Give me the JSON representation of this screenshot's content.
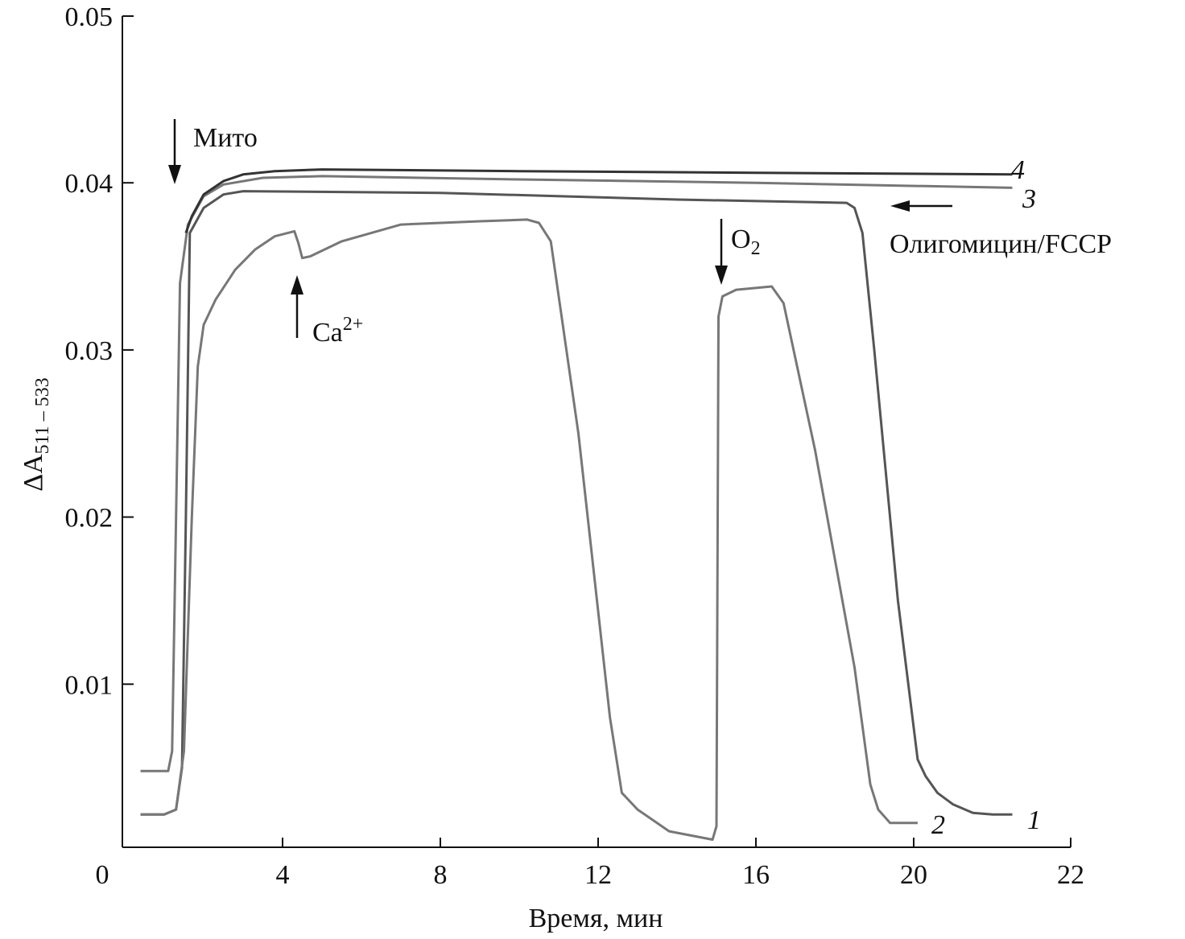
{
  "chart_data": {
    "type": "line",
    "title": "",
    "xlabel": "Время, мин",
    "ylabel": "ΔA",
    "ylabel_subscript": "511 – 533",
    "xlim": [
      0,
      22
    ],
    "ylim": [
      0,
      0.05
    ],
    "xticks": [
      "0",
      "4",
      "8",
      "12",
      "16",
      "20",
      "22"
    ],
    "yticks": [
      "0.01",
      "0.02",
      "0.03",
      "0.04",
      "0.05"
    ],
    "grid": false,
    "series": [
      {
        "name": "1",
        "color": "#555555",
        "x": [
          0.4,
          1.0,
          1.3,
          1.45,
          1.55,
          1.65,
          2.0,
          2.5,
          3.0,
          8.0,
          14.0,
          18.3,
          18.5,
          18.7,
          19.0,
          19.6,
          20.1,
          20.3,
          20.6,
          21.0,
          21.5,
          22.0,
          22.5
        ],
        "y": [
          0.0022,
          0.0022,
          0.0025,
          0.005,
          0.02,
          0.037,
          0.0385,
          0.0393,
          0.0395,
          0.0394,
          0.039,
          0.0388,
          0.0385,
          0.037,
          0.03,
          0.015,
          0.0055,
          0.0045,
          0.0035,
          0.0028,
          0.0023,
          0.0022,
          0.0022
        ]
      },
      {
        "name": "2",
        "color": "#777777",
        "x": [
          0.4,
          1.0,
          1.3,
          1.5,
          1.7,
          1.85,
          2.0,
          2.3,
          2.8,
          3.3,
          3.8,
          4.3,
          4.4,
          4.5,
          4.7,
          5.5,
          7.0,
          9.0,
          10.2,
          10.5,
          10.8,
          11.5,
          12.3,
          12.6,
          13.0,
          13.8,
          14.9,
          15.0,
          15.05,
          15.15,
          15.5,
          16.4,
          16.7,
          17.5,
          18.5,
          18.9,
          19.1,
          19.4,
          20.1
        ],
        "y": [
          0.0022,
          0.0022,
          0.0025,
          0.006,
          0.02,
          0.029,
          0.0315,
          0.033,
          0.0348,
          0.036,
          0.0368,
          0.0371,
          0.0364,
          0.0355,
          0.0356,
          0.0365,
          0.0375,
          0.0377,
          0.0378,
          0.0376,
          0.0365,
          0.025,
          0.008,
          0.0035,
          0.0025,
          0.0012,
          0.0007,
          0.0015,
          0.032,
          0.0332,
          0.0336,
          0.0338,
          0.0328,
          0.024,
          0.011,
          0.004,
          0.0025,
          0.0017,
          0.0017
        ]
      },
      {
        "name": "3",
        "color": "#777777",
        "x": [
          0.4,
          1.1,
          1.2,
          1.3,
          1.4,
          1.6,
          2.0,
          2.5,
          3.5,
          5.0,
          10.0,
          16.0,
          22.5
        ],
        "y": [
          0.0048,
          0.0048,
          0.006,
          0.02,
          0.034,
          0.0375,
          0.0392,
          0.0399,
          0.0403,
          0.0404,
          0.0402,
          0.04,
          0.0397
        ]
      },
      {
        "name": "4",
        "color": "#333333",
        "x": [
          1.55,
          1.7,
          2.0,
          2.5,
          3.0,
          3.8,
          5.0,
          10.0,
          16.0,
          22.5
        ],
        "y": [
          0.037,
          0.038,
          0.0393,
          0.0401,
          0.0405,
          0.0407,
          0.0408,
          0.0407,
          0.0406,
          0.0405
        ]
      }
    ],
    "annotations": [
      {
        "id": "mito",
        "text": "Мито",
        "arrow": "down",
        "x": 1.3
      },
      {
        "id": "ca",
        "text": "Ca",
        "sup": "2+",
        "arrow": "up",
        "x": 4.4
      },
      {
        "id": "o2",
        "text": "O",
        "sub": "2",
        "arrow": "down",
        "x": 15.0
      },
      {
        "id": "oligo",
        "text": "Олигомицин/FCCP",
        "arrow": "left",
        "x": 19.4
      }
    ]
  }
}
